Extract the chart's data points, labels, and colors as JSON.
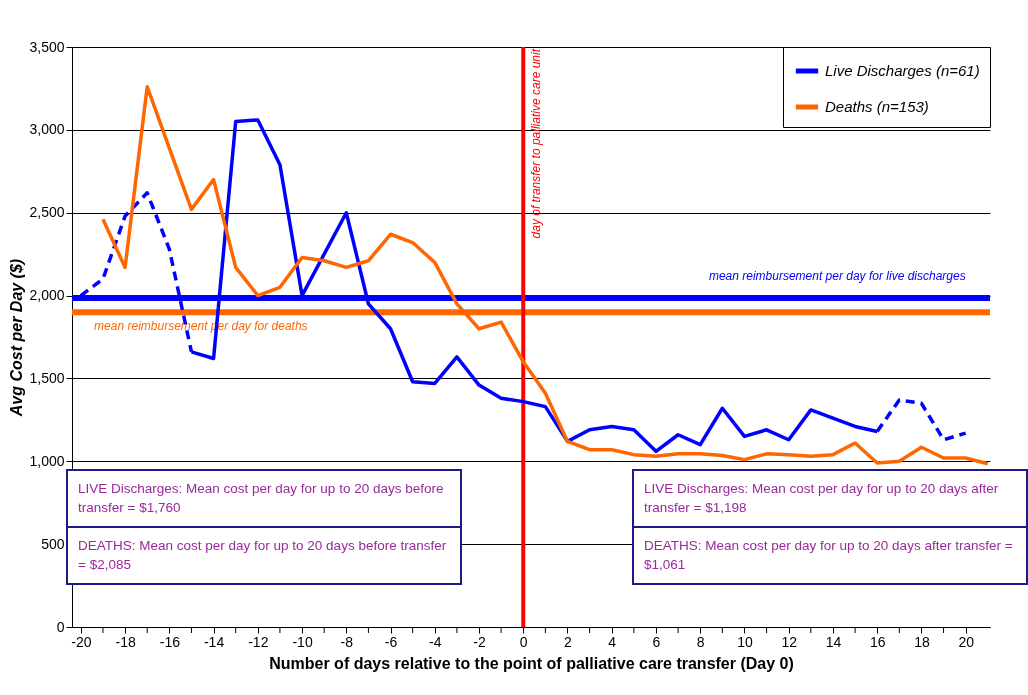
{
  "chart_data": {
    "type": "line",
    "xlabel": "Number of days relative to the point of palliative care transfer (Day 0)",
    "ylabel": "Avg Cost per Day ($)",
    "x": [
      -20,
      -19,
      -18,
      -17,
      -16,
      -15,
      -14,
      -13,
      -12,
      -11,
      -10,
      -9,
      -8,
      -7,
      -6,
      -5,
      -4,
      -3,
      -2,
      -1,
      0,
      1,
      2,
      3,
      4,
      5,
      6,
      7,
      8,
      9,
      10,
      11,
      12,
      13,
      14,
      15,
      16,
      17,
      18,
      19,
      20,
      21
    ],
    "series": [
      {
        "name": "Live Discharges (n=61)",
        "color": "#0000ff",
        "values": [
          null,
          null,
          null,
          null,
          null,
          1660,
          1620,
          3050,
          3060,
          2790,
          2000,
          2250,
          2500,
          1950,
          1800,
          1480,
          1470,
          1630,
          1460,
          1380,
          1360,
          1330,
          1120,
          1190,
          1210,
          1190,
          1060,
          1160,
          1100,
          1320,
          1150,
          1190,
          1130,
          1310,
          1260,
          1210,
          1180,
          null,
          null,
          null,
          null,
          null
        ]
      },
      {
        "color": "#0000ff",
        "line_style": "dashed",
        "values": [
          2000,
          2100,
          2480,
          2620,
          2280,
          1660,
          null,
          null,
          null,
          null,
          null,
          null,
          null,
          null,
          null,
          null,
          null,
          null,
          null,
          null,
          null,
          null,
          null,
          null,
          null,
          null,
          null,
          null,
          null,
          null,
          null,
          null,
          null,
          null,
          null,
          null,
          1180,
          1370,
          1350,
          1130,
          1170,
          null
        ]
      },
      {
        "name": "Deaths (n=153)",
        "color": "#ff6600",
        "values": [
          null,
          2460,
          2170,
          3260,
          2890,
          2520,
          2700,
          2170,
          2000,
          2050,
          2230,
          2210,
          2170,
          2210,
          2370,
          2320,
          2200,
          1950,
          1800,
          1840,
          1600,
          1410,
          1120,
          1070,
          1070,
          1040,
          1030,
          1045,
          1045,
          1035,
          1010,
          1045,
          1040,
          1030,
          1040,
          1110,
          990,
          1000,
          1085,
          1020,
          1020,
          985
        ]
      }
    ],
    "ylim": [
      0,
      3500
    ],
    "yticks": [
      0,
      {
        "value": 500,
        "label": "500"
      },
      {
        "value": 1000,
        "label": "1,000"
      },
      {
        "value": 1500,
        "label": "1,500"
      },
      {
        "value": 2000,
        "label": "2,000"
      },
      {
        "value": 2500,
        "label": "2,500"
      },
      {
        "value": 3000,
        "label": "3,000"
      },
      {
        "value": 3500,
        "label": "3,500"
      }
    ],
    "xlim": [
      -20.4,
      21.1
    ],
    "xticks": [
      -20,
      {
        "value": -19,
        "label": null
      },
      -18,
      {
        "value": -17,
        "label": null
      },
      -16,
      {
        "value": -15,
        "label": null
      },
      -14,
      {
        "value": -13,
        "label": null
      },
      -12,
      {
        "value": -11,
        "label": null
      },
      -10,
      {
        "value": -9,
        "label": null
      },
      -8,
      {
        "value": -7,
        "label": null
      },
      -6,
      {
        "value": -5,
        "label": null
      },
      -4,
      {
        "value": -3,
        "label": null
      },
      -2,
      {
        "value": -1,
        "label": null
      },
      0,
      {
        "value": 1,
        "label": null
      },
      2,
      {
        "value": 3,
        "label": null
      },
      4,
      {
        "value": 5,
        "label": null
      },
      6,
      {
        "value": 7,
        "label": null
      },
      8,
      {
        "value": 9,
        "label": null
      },
      10,
      {
        "value": 11,
        "label": null
      },
      12,
      {
        "value": 13,
        "label": null
      },
      14,
      {
        "value": 15,
        "label": null
      },
      16,
      {
        "value": 17,
        "label": null
      },
      18,
      {
        "value": 19,
        "label": null
      },
      20
    ],
    "ref_lines": [
      {
        "axis": "y",
        "value": 1985,
        "label": "mean reimbursement per day for live discharges",
        "color": "#0000ff"
      },
      {
        "axis": "y",
        "value": 1900,
        "label": "mean reimbursement per day for deaths",
        "color": "#ff6600"
      },
      {
        "axis": "x",
        "value": 0,
        "label": "day of transfer to palliative care unit",
        "color": "#ff0000"
      }
    ],
    "annotations": [
      "LIVE Discharges: Mean cost per day for up to 20 days before transfer = $1,760",
      "DEATHS: Mean cost per day for up to 20 days before transfer = $2,085",
      "LIVE Discharges: Mean cost per day for up to 20 days after transfer = $1,198",
      "DEATHS: Mean cost per day for up to 20 days after transfer = $1,061"
    ],
    "grid": "y",
    "legend": "top right",
    "marker": "none",
    "line_style": "solid"
  }
}
